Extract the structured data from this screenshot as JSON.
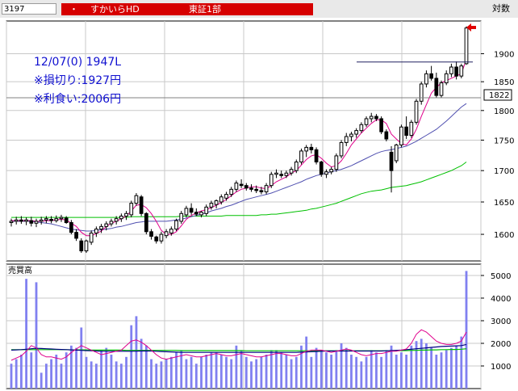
{
  "header": {
    "code": "3197",
    "bullet": "・",
    "name": "すかいらHD",
    "exchange": "東証1部",
    "mode": "対数"
  },
  "annotations": {
    "line1": "12/07(0) 1947L",
    "line2": "※損切り:1927円",
    "line3": "※利食い:2006円"
  },
  "current_price_label": "1822",
  "colors": {
    "header_red": "#d60000",
    "annotation_blue": "#1010d0",
    "candle_edge": "#000000",
    "ma_short": "#e0008c",
    "ma_mid": "#5050b0",
    "ma_long": "#00c000",
    "volume_bar": "#8080f0",
    "arrow": "#e00000",
    "grid": "#c8c8c8"
  },
  "chart_data": [
    {
      "type": "candlestick",
      "scale": "log",
      "ylim": [
        1560,
        1960
      ],
      "yticks": [
        1600,
        1650,
        1700,
        1750,
        1800,
        1850,
        1900
      ],
      "grid": true,
      "reference_line": 1822,
      "resistance_line": 1885,
      "ohlc": [
        [
          1618,
          1624,
          1612,
          1620
        ],
        [
          1620,
          1627,
          1615,
          1622
        ],
        [
          1622,
          1628,
          1616,
          1620
        ],
        [
          1620,
          1626,
          1614,
          1622
        ],
        [
          1621,
          1627,
          1612,
          1617
        ],
        [
          1617,
          1624,
          1611,
          1620
        ],
        [
          1620,
          1627,
          1615,
          1622
        ],
        [
          1622,
          1628,
          1617,
          1624
        ],
        [
          1623,
          1628,
          1617,
          1621
        ],
        [
          1621,
          1629,
          1618,
          1624
        ],
        [
          1624,
          1630,
          1619,
          1626
        ],
        [
          1625,
          1628,
          1616,
          1618
        ],
        [
          1618,
          1622,
          1600,
          1603
        ],
        [
          1603,
          1608,
          1590,
          1594
        ],
        [
          1590,
          1594,
          1572,
          1575
        ],
        [
          1575,
          1592,
          1572,
          1590
        ],
        [
          1588,
          1606,
          1584,
          1602
        ],
        [
          1602,
          1612,
          1596,
          1608
        ],
        [
          1608,
          1616,
          1602,
          1612
        ],
        [
          1612,
          1620,
          1606,
          1616
        ],
        [
          1616,
          1624,
          1612,
          1620
        ],
        [
          1620,
          1628,
          1615,
          1624
        ],
        [
          1624,
          1632,
          1619,
          1628
        ],
        [
          1628,
          1636,
          1622,
          1632
        ],
        [
          1630,
          1652,
          1626,
          1648
        ],
        [
          1648,
          1664,
          1644,
          1660
        ],
        [
          1658,
          1661,
          1628,
          1632
        ],
        [
          1632,
          1634,
          1600,
          1604
        ],
        [
          1604,
          1608,
          1592,
          1597
        ],
        [
          1596,
          1598,
          1586,
          1590
        ],
        [
          1590,
          1604,
          1586,
          1600
        ],
        [
          1598,
          1608,
          1594,
          1604
        ],
        [
          1602,
          1612,
          1598,
          1608
        ],
        [
          1608,
          1624,
          1605,
          1621
        ],
        [
          1620,
          1636,
          1616,
          1632
        ],
        [
          1630,
          1644,
          1626,
          1640
        ],
        [
          1640,
          1648,
          1630,
          1634
        ],
        [
          1634,
          1640,
          1628,
          1631
        ],
        [
          1630,
          1636,
          1626,
          1634
        ],
        [
          1632,
          1646,
          1628,
          1642
        ],
        [
          1642,
          1652,
          1638,
          1648
        ],
        [
          1646,
          1654,
          1640,
          1652
        ],
        [
          1650,
          1662,
          1646,
          1658
        ],
        [
          1656,
          1666,
          1652,
          1662
        ],
        [
          1662,
          1674,
          1658,
          1670
        ],
        [
          1670,
          1684,
          1666,
          1680
        ],
        [
          1678,
          1686,
          1672,
          1676
        ],
        [
          1676,
          1680,
          1668,
          1672
        ],
        [
          1672,
          1678,
          1666,
          1670
        ],
        [
          1670,
          1676,
          1664,
          1668
        ],
        [
          1668,
          1674,
          1662,
          1666
        ],
        [
          1666,
          1680,
          1662,
          1676
        ],
        [
          1676,
          1698,
          1672,
          1694
        ],
        [
          1694,
          1702,
          1688,
          1696
        ],
        [
          1694,
          1700,
          1688,
          1692
        ],
        [
          1692,
          1700,
          1688,
          1696
        ],
        [
          1696,
          1706,
          1692,
          1702
        ],
        [
          1700,
          1718,
          1696,
          1714
        ],
        [
          1714,
          1736,
          1710,
          1732
        ],
        [
          1732,
          1742,
          1722,
          1738
        ],
        [
          1738,
          1744,
          1728,
          1734
        ],
        [
          1734,
          1738,
          1710,
          1714
        ],
        [
          1714,
          1716,
          1690,
          1694
        ],
        [
          1694,
          1702,
          1688,
          1698
        ],
        [
          1698,
          1706,
          1694,
          1702
        ],
        [
          1702,
          1728,
          1698,
          1724
        ],
        [
          1724,
          1750,
          1720,
          1746
        ],
        [
          1746,
          1762,
          1740,
          1756
        ],
        [
          1756,
          1764,
          1748,
          1760
        ],
        [
          1760,
          1770,
          1754,
          1766
        ],
        [
          1766,
          1780,
          1762,
          1776
        ],
        [
          1776,
          1790,
          1772,
          1786
        ],
        [
          1786,
          1796,
          1780,
          1790
        ],
        [
          1790,
          1794,
          1782,
          1786
        ],
        [
          1786,
          1790,
          1760,
          1764
        ],
        [
          1764,
          1768,
          1748,
          1752
        ],
        [
          1730,
          1740,
          1665,
          1700
        ],
        [
          1716,
          1744,
          1712,
          1742
        ],
        [
          1742,
          1776,
          1738,
          1772
        ],
        [
          1772,
          1790,
          1752,
          1758
        ],
        [
          1758,
          1784,
          1754,
          1780
        ],
        [
          1780,
          1820,
          1776,
          1816
        ],
        [
          1816,
          1850,
          1810,
          1846
        ],
        [
          1846,
          1870,
          1840,
          1864
        ],
        [
          1864,
          1878,
          1852,
          1856
        ],
        [
          1856,
          1866,
          1822,
          1826
        ],
        [
          1826,
          1852,
          1822,
          1848
        ],
        [
          1848,
          1870,
          1844,
          1864
        ],
        [
          1864,
          1882,
          1858,
          1876
        ],
        [
          1876,
          1886,
          1854,
          1860
        ],
        [
          1860,
          1882,
          1856,
          1878
        ],
        [
          1882,
          1950,
          1880,
          1947
        ]
      ],
      "ma_short": [
        1621,
        1621,
        1621,
        1621,
        1621,
        1620,
        1620,
        1621,
        1621,
        1622,
        1623,
        1622,
        1617,
        1612,
        1603,
        1598,
        1598,
        1601,
        1605,
        1612,
        1617,
        1620,
        1624,
        1628,
        1636,
        1645,
        1646,
        1641,
        1632,
        1620,
        1606,
        1600,
        1600,
        1604,
        1613,
        1623,
        1629,
        1633,
        1636,
        1638,
        1641,
        1645,
        1649,
        1654,
        1660,
        1666,
        1670,
        1672,
        1674,
        1674,
        1672,
        1671,
        1676,
        1682,
        1686,
        1690,
        1696,
        1700,
        1709,
        1718,
        1724,
        1726,
        1720,
        1712,
        1706,
        1708,
        1716,
        1728,
        1742,
        1752,
        1762,
        1770,
        1778,
        1784,
        1784,
        1778,
        1760,
        1752,
        1744,
        1742,
        1752,
        1768,
        1790,
        1810,
        1830,
        1840,
        1848,
        1852,
        1856,
        1860,
        1864,
        1890
      ],
      "ma_mid": [
        1620,
        1620,
        1620,
        1620,
        1620,
        1619,
        1618,
        1617,
        1616,
        1614,
        1612,
        1610,
        1608,
        1607,
        1606,
        1605,
        1605,
        1606,
        1607,
        1608,
        1609,
        1611,
        1612,
        1614,
        1616,
        1618,
        1619,
        1620,
        1620,
        1620,
        1620,
        1620,
        1621,
        1622,
        1623,
        1625,
        1627,
        1629,
        1631,
        1633,
        1636,
        1638,
        1640,
        1643,
        1645,
        1648,
        1651,
        1654,
        1656,
        1658,
        1660,
        1662,
        1664,
        1667,
        1670,
        1673,
        1676,
        1679,
        1682,
        1686,
        1689,
        1692,
        1694,
        1696,
        1698,
        1700,
        1702,
        1705,
        1708,
        1712,
        1716,
        1720,
        1724,
        1728,
        1731,
        1733,
        1734,
        1736,
        1738,
        1740,
        1744,
        1748,
        1753,
        1758,
        1763,
        1768,
        1775,
        1782,
        1790,
        1798,
        1806,
        1812
      ],
      "ma_long": [
        1626,
        1626,
        1626,
        1626,
        1626,
        1626,
        1626,
        1626,
        1626,
        1626,
        1626,
        1626,
        1626,
        1626,
        1626,
        1626,
        1626,
        1626,
        1626,
        1626,
        1626,
        1626,
        1626,
        1626,
        1627,
        1627,
        1627,
        1627,
        1627,
        1627,
        1627,
        1627,
        1627,
        1627,
        1628,
        1628,
        1628,
        1628,
        1628,
        1628,
        1628,
        1628,
        1628,
        1629,
        1629,
        1629,
        1629,
        1629,
        1629,
        1629,
        1630,
        1630,
        1631,
        1631,
        1632,
        1633,
        1634,
        1635,
        1636,
        1637,
        1639,
        1640,
        1642,
        1644,
        1646,
        1648,
        1651,
        1654,
        1657,
        1660,
        1663,
        1665,
        1667,
        1668,
        1669,
        1671,
        1673,
        1674,
        1675,
        1676,
        1678,
        1680,
        1682,
        1685,
        1688,
        1691,
        1694,
        1697,
        1700,
        1704,
        1708,
        1714
      ]
    },
    {
      "type": "bar",
      "title": "売買高",
      "ylim": [
        0,
        5500
      ],
      "yticks": [
        1000,
        2000,
        3000,
        4000,
        5000
      ],
      "values": [
        1100,
        1300,
        1500,
        4850,
        1600,
        4700,
        700,
        1100,
        1300,
        1500,
        1100,
        1600,
        1900,
        1800,
        2700,
        1400,
        1200,
        1100,
        1700,
        1800,
        1500,
        1200,
        1100,
        1400,
        2800,
        3200,
        2200,
        1900,
        1300,
        1100,
        1200,
        1300,
        1400,
        1600,
        1700,
        1300,
        1400,
        1100,
        1400,
        1500,
        1600,
        1600,
        1500,
        1400,
        1300,
        1900,
        1700,
        1400,
        1200,
        1300,
        1400,
        1500,
        1700,
        1700,
        1600,
        1500,
        1300,
        1400,
        1900,
        2300,
        1400,
        1800,
        1700,
        1600,
        1500,
        1700,
        2000,
        1800,
        1500,
        1400,
        1200,
        1400,
        1700,
        1600,
        1400,
        1700,
        1900,
        1500,
        1600,
        1500,
        1900,
        2100,
        2200,
        2000,
        1800,
        1500,
        1600,
        1700,
        1800,
        1900,
        2300,
        5200
      ],
      "ma_short": [
        1250,
        1350,
        1450,
        1650,
        1900,
        1800,
        1500,
        1400,
        1400,
        1350,
        1300,
        1400,
        1600,
        1750,
        1900,
        1800,
        1700,
        1600,
        1500,
        1550,
        1600,
        1650,
        1700,
        1900,
        2100,
        2150,
        2050,
        1900,
        1700,
        1500,
        1350,
        1300,
        1350,
        1400,
        1450,
        1500,
        1450,
        1400,
        1400,
        1450,
        1500,
        1550,
        1500,
        1450,
        1450,
        1500,
        1550,
        1500,
        1450,
        1400,
        1400,
        1450,
        1500,
        1550,
        1550,
        1500,
        1450,
        1450,
        1550,
        1650,
        1700,
        1700,
        1700,
        1650,
        1600,
        1650,
        1700,
        1750,
        1700,
        1600,
        1500,
        1450,
        1500,
        1550,
        1550,
        1600,
        1650,
        1650,
        1700,
        1750,
        2000,
        2400,
        2600,
        2500,
        2300,
        2100,
        2000,
        1950,
        1950,
        2000,
        2100,
        2500
      ],
      "ma_mid": [
        1700,
        1710,
        1720,
        1740,
        1760,
        1780,
        1770,
        1760,
        1750,
        1740,
        1730,
        1720,
        1710,
        1700,
        1690,
        1680,
        1670,
        1660,
        1650,
        1650,
        1650,
        1650,
        1650,
        1650,
        1650,
        1655,
        1660,
        1665,
        1660,
        1650,
        1640,
        1630,
        1620,
        1610,
        1600,
        1600,
        1600,
        1600,
        1600,
        1600,
        1600,
        1600,
        1600,
        1600,
        1600,
        1600,
        1600,
        1600,
        1600,
        1600,
        1600,
        1600,
        1600,
        1600,
        1600,
        1600,
        1600,
        1600,
        1610,
        1620,
        1630,
        1640,
        1650,
        1660,
        1660,
        1660,
        1660,
        1660,
        1660,
        1660,
        1660,
        1660,
        1660,
        1660,
        1660,
        1670,
        1680,
        1690,
        1700,
        1720,
        1740,
        1760,
        1780,
        1800,
        1820,
        1840,
        1860,
        1870,
        1880,
        1890,
        1900,
        1950
      ],
      "ma_long": [
        1720,
        1720,
        1720,
        1720,
        1720,
        1720,
        1720,
        1720,
        1720,
        1720,
        1720,
        1720,
        1710,
        1710,
        1710,
        1710,
        1700,
        1700,
        1700,
        1700,
        1700,
        1700,
        1700,
        1690,
        1690,
        1690,
        1690,
        1690,
        1690,
        1690,
        1690,
        1690,
        1690,
        1690,
        1680,
        1680,
        1680,
        1680,
        1680,
        1680,
        1680,
        1680,
        1680,
        1680,
        1680,
        1680,
        1680,
        1670,
        1670,
        1670,
        1670,
        1670,
        1670,
        1670,
        1670,
        1670,
        1670,
        1670,
        1670,
        1670,
        1670,
        1670,
        1670,
        1670,
        1670,
        1670,
        1670,
        1670,
        1670,
        1670,
        1670,
        1670,
        1670,
        1670,
        1670,
        1670,
        1670,
        1680,
        1680,
        1680,
        1690,
        1690,
        1700,
        1700,
        1710,
        1710,
        1720,
        1720,
        1730,
        1730,
        1740,
        1760
      ]
    }
  ]
}
